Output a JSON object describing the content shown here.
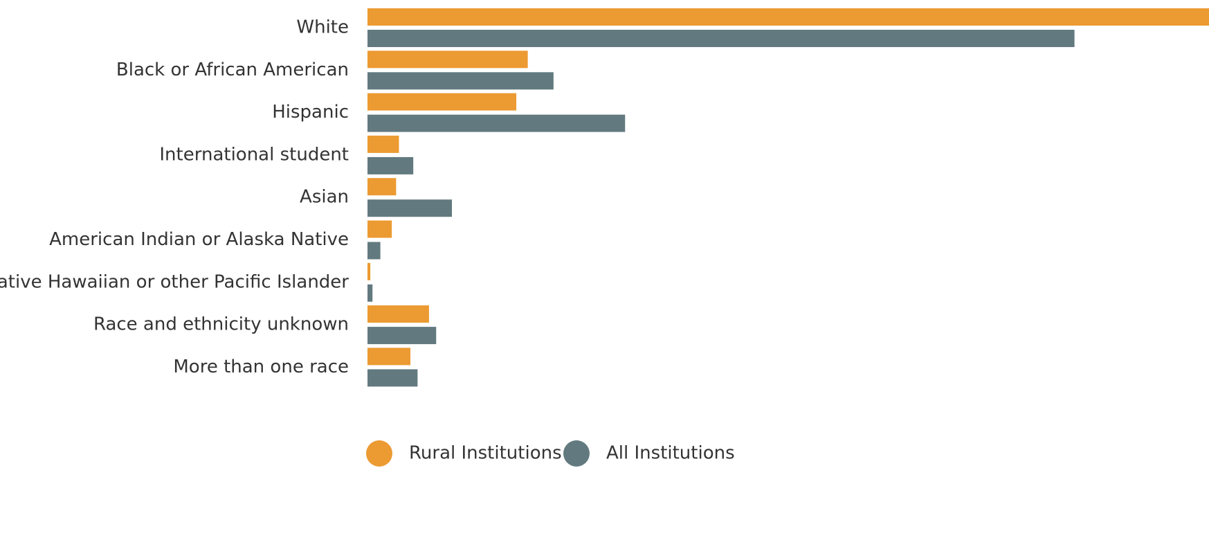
{
  "chart_data": {
    "type": "bar",
    "orientation": "horizontal",
    "title": "",
    "xlabel": "",
    "ylabel": "",
    "categories": [
      "White",
      "Black or African American",
      "Hispanic",
      "International student",
      "Asian",
      "American Indian or Alaska Native",
      "Native Hawaiian or other Pacific Islander",
      "Race and ethnicity unknown",
      "More than one race"
    ],
    "series": [
      {
        "name": "Rural Institutions",
        "color": "#EC9A32",
        "values": [
          58.8,
          11.2,
          10.4,
          2.2,
          2.0,
          1.7,
          0.2,
          4.3,
          3.0
        ]
      },
      {
        "name": "All Institutions",
        "color": "#627A7F",
        "values": [
          49.4,
          13.0,
          18.0,
          3.2,
          5.9,
          0.9,
          0.35,
          4.8,
          3.5
        ]
      }
    ],
    "xlim": [
      0,
      58.8
    ],
    "grid": false,
    "legend": "bottom-center"
  }
}
